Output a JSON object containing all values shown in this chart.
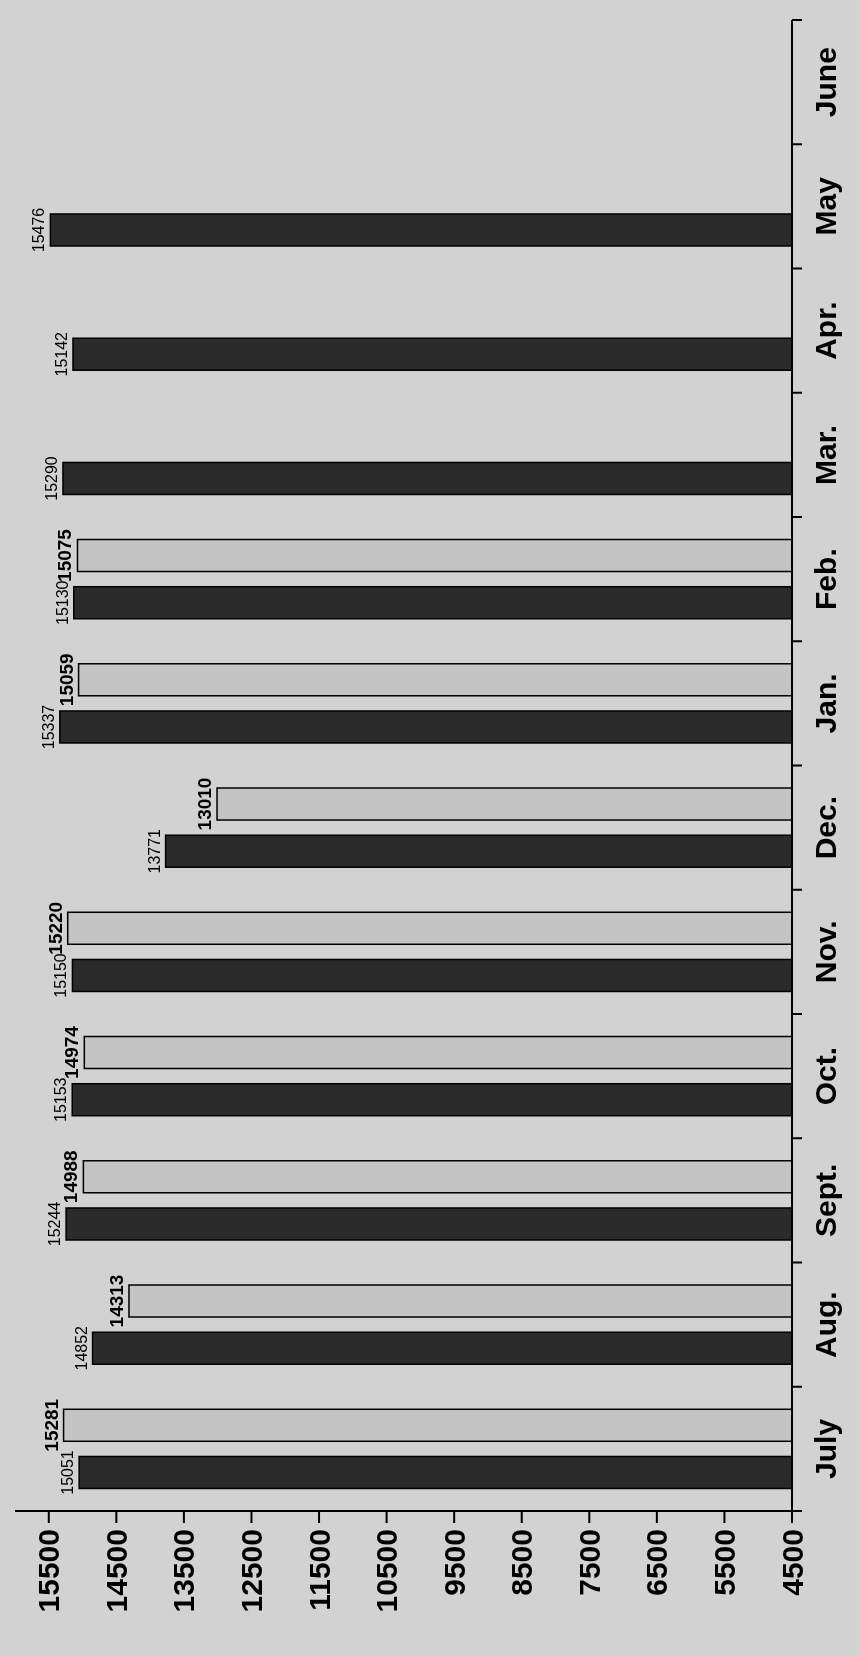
{
  "chart_data": {
    "type": "bar",
    "orientation": "horizontal",
    "categories": [
      "June",
      "May",
      "Apr.",
      "Mar.",
      "Feb.",
      "Jan.",
      "Dec.",
      "Nov.",
      "Oct.",
      "Sept.",
      "Aug.",
      "July"
    ],
    "series": [
      {
        "color": "#c4c4c4",
        "values": [
          null,
          null,
          null,
          null,
          15075,
          15059,
          13010,
          15220,
          14974,
          14988,
          14313,
          15281
        ]
      },
      {
        "color": "#2b2b2b",
        "values": [
          null,
          15476,
          15142,
          15290,
          15130,
          15337,
          13771,
          15150,
          15153,
          15244,
          14852,
          15051
        ]
      }
    ],
    "xlim": [
      16000,
      4500
    ],
    "xticks": [
      15500,
      14500,
      13500,
      12500,
      11500,
      10500,
      9500,
      8500,
      7500,
      6500,
      5500,
      4500
    ],
    "data_labels": true
  }
}
